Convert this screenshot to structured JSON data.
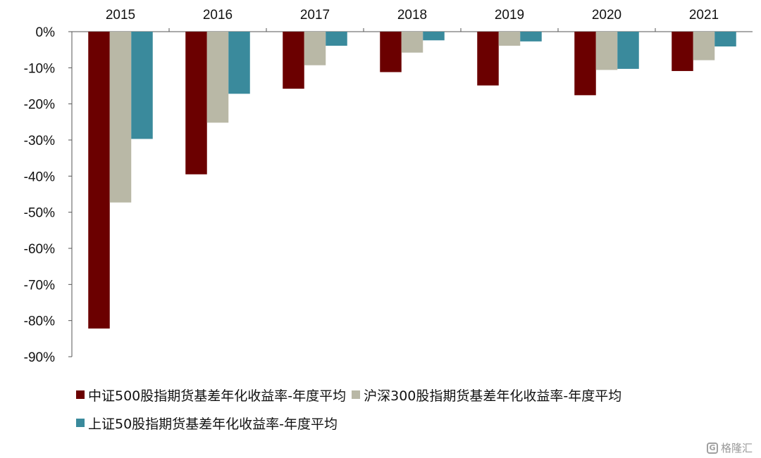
{
  "chart_data": {
    "type": "bar",
    "categories": [
      "2015",
      "2016",
      "2017",
      "2018",
      "2019",
      "2020",
      "2021"
    ],
    "ylim": [
      -90,
      0
    ],
    "y_ticks": [
      "0%",
      "-10%",
      "-20%",
      "-30%",
      "-40%",
      "-50%",
      "-60%",
      "-70%",
      "-80%",
      "-90%"
    ],
    "y_tick_values": [
      0,
      -10,
      -20,
      -30,
      -40,
      -50,
      -60,
      -70,
      -80,
      -90
    ],
    "category_axis_position": "top",
    "legend_position": "bottom",
    "grid": false,
    "series": [
      {
        "name": "中证500股指期货基差年化收益率-年度平均",
        "color": "#6b0000",
        "values": [
          -82.2,
          -39.5,
          -15.8,
          -11.2,
          -14.9,
          -17.6,
          -10.9
        ]
      },
      {
        "name": "沪深300股指期货基差年化收益率-年度平均",
        "color": "#b9b8a6",
        "values": [
          -47.3,
          -25.2,
          -9.3,
          -5.8,
          -3.9,
          -10.6,
          -7.9
        ]
      },
      {
        "name": "上证50股指期货基差年化收益率-年度平均",
        "color": "#3a8a9c",
        "values": [
          -29.7,
          -17.2,
          -3.9,
          -2.4,
          -2.7,
          -10.3,
          -4.1
        ]
      }
    ]
  },
  "watermark": {
    "text": "格隆汇"
  }
}
